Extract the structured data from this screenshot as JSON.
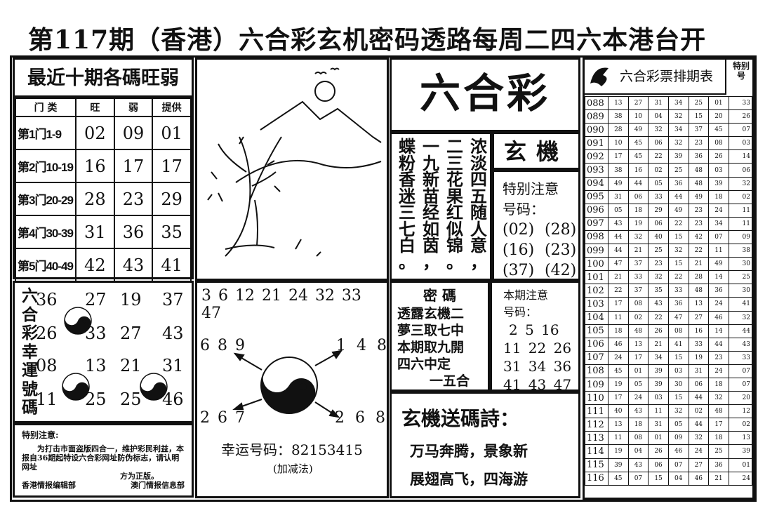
{
  "title": "第117期（香港）六合彩玄机密码透路每周二四六本港台开",
  "strength": {
    "heading": "最近十期各碼旺弱",
    "columns": [
      "门 类",
      "旺",
      "弱",
      "提供"
    ],
    "rows": [
      [
        "第1门1-9",
        "02",
        "09",
        "01"
      ],
      [
        "第2门10-19",
        "16",
        "17",
        "17"
      ],
      [
        "第3门20-29",
        "28",
        "23",
        "29"
      ],
      [
        "第4门30-39",
        "31",
        "36",
        "35"
      ],
      [
        "第5门40-49",
        "42",
        "43",
        "41"
      ]
    ]
  },
  "lucky": {
    "label": "六合彩幸運號碼",
    "rows": [
      [
        "36",
        "27",
        "19",
        "37"
      ],
      [
        "26",
        "33",
        "27",
        "43"
      ],
      [
        "08",
        "13",
        "21",
        "31"
      ],
      [
        "11",
        "25",
        "25",
        "46"
      ]
    ]
  },
  "notice": {
    "heading": "特别注意:",
    "body": "为打击市面盗版四合一，维护彩民利益，本报自36期起特设六合彩网址防伪标志，请认明网址",
    "tail": "方为正版。",
    "left_org": "香港情报编辑部",
    "right_org": "澳门情报信息部"
  },
  "numbers": {
    "top": "3 6 12 21 24 32 33 47",
    "upper_left": "6 8 9",
    "upper_right": "1 4 8",
    "lower_left": "2 6 7",
    "lower_right": "2 6 8",
    "lucky_label": "幸运号码：",
    "lucky_value": "82153415",
    "method": "(加减法)"
  },
  "logo": {
    "text": "六合彩",
    "sub": "玄機"
  },
  "poem_columns": [
    "蝶粉香迷三七白。",
    "一九新苗经如茵，",
    "二三花果红似锦。",
    "浓淡四五随人意，"
  ],
  "special": {
    "heading1": "特别注意",
    "heading2": "号码：",
    "codes": [
      "(02)",
      "(28)",
      "(16)",
      "(23)",
      "(37)",
      "(42)"
    ]
  },
  "code": {
    "heading": "密 碼",
    "lines": [
      "透露玄機二",
      "夢三取七中",
      "本期取九開",
      "四六中定",
      "一五合"
    ]
  },
  "period_note": {
    "heading1": "本期注意",
    "heading2": "号码：",
    "lines": [
      "2 5 16",
      "11 22 26",
      "31 34 36",
      "41 43 47"
    ]
  },
  "code_poem": {
    "heading": "玄機送碼詩：",
    "lines": [
      "万马奔腾，景象新",
      "展翅高飞，四海游"
    ]
  },
  "schedule": {
    "heading": "六合彩票排期表",
    "special_label": "特别号",
    "rows": [
      [
        "088",
        "13",
        "27",
        "31",
        "34",
        "25",
        "01",
        "33"
      ],
      [
        "089",
        "38",
        "10",
        "04",
        "32",
        "15",
        "20",
        "26"
      ],
      [
        "090",
        "28",
        "49",
        "32",
        "34",
        "37",
        "45",
        "07"
      ],
      [
        "091",
        "10",
        "45",
        "06",
        "32",
        "23",
        "08",
        "03"
      ],
      [
        "092",
        "17",
        "45",
        "22",
        "39",
        "36",
        "26",
        "14"
      ],
      [
        "093",
        "38",
        "16",
        "02",
        "25",
        "48",
        "03",
        "06"
      ],
      [
        "094",
        "49",
        "44",
        "05",
        "36",
        "48",
        "39",
        "32"
      ],
      [
        "095",
        "31",
        "06",
        "33",
        "44",
        "49",
        "18",
        "02"
      ],
      [
        "096",
        "05",
        "18",
        "29",
        "49",
        "23",
        "24",
        "11"
      ],
      [
        "097",
        "43",
        "19",
        "06",
        "22",
        "23",
        "34",
        "11"
      ],
      [
        "098",
        "44",
        "32",
        "40",
        "15",
        "42",
        "07",
        "09"
      ],
      [
        "099",
        "44",
        "21",
        "25",
        "32",
        "22",
        "11",
        "38"
      ],
      [
        "100",
        "47",
        "37",
        "23",
        "15",
        "21",
        "49",
        "30"
      ],
      [
        "101",
        "21",
        "33",
        "32",
        "22",
        "28",
        "14",
        "25"
      ],
      [
        "102",
        "22",
        "37",
        "35",
        "33",
        "48",
        "36",
        "30"
      ],
      [
        "103",
        "17",
        "08",
        "43",
        "36",
        "13",
        "24",
        "41"
      ],
      [
        "104",
        "11",
        "02",
        "22",
        "47",
        "27",
        "46",
        "32"
      ],
      [
        "105",
        "18",
        "48",
        "26",
        "08",
        "16",
        "14",
        "44"
      ],
      [
        "106",
        "46",
        "13",
        "21",
        "41",
        "33",
        "44",
        "43"
      ],
      [
        "107",
        "24",
        "17",
        "34",
        "15",
        "19",
        "23",
        "33"
      ],
      [
        "108",
        "45",
        "01",
        "39",
        "03",
        "31",
        "24",
        "07"
      ],
      [
        "109",
        "19",
        "05",
        "39",
        "30",
        "06",
        "18",
        "07"
      ],
      [
        "110",
        "17",
        "24",
        "03",
        "15",
        "44",
        "32",
        "20"
      ],
      [
        "111",
        "40",
        "43",
        "11",
        "32",
        "02",
        "48",
        "12"
      ],
      [
        "112",
        "13",
        "18",
        "31",
        "05",
        "44",
        "17",
        "02"
      ],
      [
        "113",
        "11",
        "08",
        "01",
        "09",
        "32",
        "18",
        "13"
      ],
      [
        "114",
        "19",
        "04",
        "26",
        "46",
        "24",
        "25",
        "39"
      ],
      [
        "115",
        "39",
        "43",
        "06",
        "07",
        "27",
        "36",
        "01"
      ],
      [
        "116",
        "45",
        "07",
        "15",
        "04",
        "46",
        "21",
        "24"
      ]
    ]
  }
}
